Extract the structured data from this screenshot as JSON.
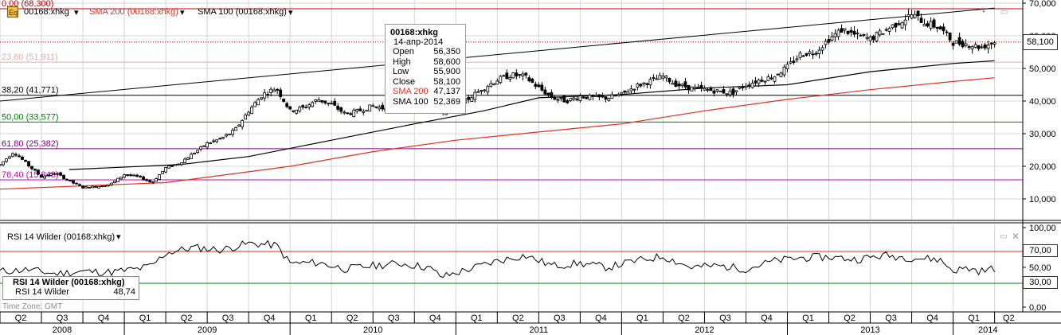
{
  "header": {
    "symbol_label": "00168:xhkg",
    "sma200_label": "SMA 200 (00168:xhkg)",
    "sma100_label": "SMA 100 (00168:xhkg)"
  },
  "colors": {
    "price": "#000000",
    "sma200": "#e0301e",
    "sma100": "#000000",
    "fib_0": "#c00000",
    "fib_23": "#d8b0b0",
    "fib_38": "#000000",
    "fib_50": "#008000",
    "fib_61": "#800080",
    "fib_76": "#cc00cc",
    "rsi": "#000000",
    "rsi_70": "#e0301e",
    "rsi_30": "#008000",
    "grid": "#d4d4d4"
  },
  "tooltip": {
    "title": "00168:xhkg",
    "date": "14-апр-2014",
    "rows": [
      {
        "label": "Open",
        "value": "56,350"
      },
      {
        "label": "High",
        "value": "58,600"
      },
      {
        "label": "Low",
        "value": "55,900"
      },
      {
        "label": "Close",
        "value": "58,100"
      },
      {
        "label": "SMA 200",
        "value": "47,137"
      },
      {
        "label": "SMA 100",
        "value": "52,369"
      }
    ]
  },
  "last_price_label": "58,100",
  "rsi": {
    "header": "RSI 14 Wilder (00168:xhkg)",
    "box_title": "RSI 14 Wilder (00168:xhkg)",
    "box_label": "RSI 14 Wilder",
    "box_value": "48,74",
    "level_70_label": "70,00",
    "level_30_label": "30,00"
  },
  "timezone": "Time Zone: GMT",
  "icons": {
    "settings": "settings-icon",
    "close": "close-icon",
    "maximize": "maximize-icon",
    "dropdown": "dropdown-arrow-icon"
  },
  "chart_data": [
    {
      "type": "candlestick",
      "title": "00168:xhkg",
      "y_ticks": [
        "70,000",
        "60,000",
        "50,000",
        "40,000",
        "30,000",
        "20,000",
        "10,000"
      ],
      "ylim": [
        0,
        70000
      ],
      "x_quarters": [
        "Q2",
        "Q3",
        "Q4",
        "Q1",
        "Q2",
        "Q3",
        "Q4",
        "Q1",
        "Q2",
        "Q3",
        "Q4",
        "Q1",
        "Q2",
        "Q3",
        "Q4",
        "Q1",
        "Q2",
        "Q3",
        "Q4",
        "Q1",
        "Q2",
        "Q3",
        "Q4",
        "Q1",
        "Q2"
      ],
      "x_years": [
        "2008",
        "2009",
        "2010",
        "2011",
        "2012",
        "2013",
        "2014"
      ],
      "fib_levels": [
        {
          "label": "0,00 (68,300)",
          "value": 68300
        },
        {
          "label": "23,60 (51,911)",
          "value": 51911
        },
        {
          "label": "38,20 (41,771)",
          "value": 41771
        },
        {
          "label": "50,00 (33,577)",
          "value": 33577
        },
        {
          "label": "61,80 (25,382)",
          "value": 25382
        },
        {
          "label": "76,40 (15,848)",
          "value": 15848
        }
      ],
      "trendline": {
        "start": [
          "2008-04",
          40000
        ],
        "end": [
          "2014-04",
          68500
        ]
      },
      "price_path": [
        [
          "2008-04",
          20500
        ],
        [
          "2008-05",
          24500
        ],
        [
          "2008-06",
          20500
        ],
        [
          "2008-07",
          16800
        ],
        [
          "2008-08",
          18000
        ],
        [
          "2008-09",
          15500
        ],
        [
          "2008-10",
          13500
        ],
        [
          "2008-11",
          13800
        ],
        [
          "2008-12",
          14500
        ],
        [
          "2009-01",
          17500
        ],
        [
          "2009-02",
          16800
        ],
        [
          "2009-03",
          15000
        ],
        [
          "2009-04",
          19500
        ],
        [
          "2009-05",
          21000
        ],
        [
          "2009-06",
          24000
        ],
        [
          "2009-07",
          27000
        ],
        [
          "2009-08",
          28500
        ],
        [
          "2009-09",
          31000
        ],
        [
          "2009-10",
          37000
        ],
        [
          "2009-11",
          42000
        ],
        [
          "2009-12",
          44000
        ],
        [
          "2010-01",
          37000
        ],
        [
          "2010-02",
          38000
        ],
        [
          "2010-03",
          40500
        ],
        [
          "2010-04",
          39000
        ],
        [
          "2010-05",
          36000
        ],
        [
          "2010-06",
          37000
        ],
        [
          "2010-07",
          38500
        ],
        [
          "2010-08",
          37500
        ],
        [
          "2010-09",
          38000
        ],
        [
          "2010-10",
          39000
        ],
        [
          "2010-11",
          38000
        ],
        [
          "2010-12",
          36500
        ],
        [
          "2011-01",
          38000
        ],
        [
          "2011-02",
          41000
        ],
        [
          "2011-03",
          44000
        ],
        [
          "2011-04",
          46500
        ],
        [
          "2011-05",
          48000
        ],
        [
          "2011-06",
          47500
        ],
        [
          "2011-07",
          44000
        ],
        [
          "2011-08",
          41000
        ],
        [
          "2011-09",
          40000
        ],
        [
          "2011-10",
          41500
        ],
        [
          "2011-11",
          41000
        ],
        [
          "2011-12",
          41000
        ],
        [
          "2012-01",
          42000
        ],
        [
          "2012-02",
          44500
        ],
        [
          "2012-03",
          46000
        ],
        [
          "2012-04",
          47500
        ],
        [
          "2012-05",
          45000
        ],
        [
          "2012-06",
          44000
        ],
        [
          "2012-07",
          43500
        ],
        [
          "2012-08",
          43000
        ],
        [
          "2012-09",
          42500
        ],
        [
          "2012-10",
          45000
        ],
        [
          "2012-11",
          46500
        ],
        [
          "2012-12",
          47500
        ],
        [
          "2013-01",
          50500
        ],
        [
          "2013-02",
          54500
        ],
        [
          "2013-03",
          55000
        ],
        [
          "2013-04",
          59000
        ],
        [
          "2013-05",
          62000
        ],
        [
          "2013-06",
          60000
        ],
        [
          "2013-07",
          59000
        ],
        [
          "2013-08",
          61500
        ],
        [
          "2013-09",
          64000
        ],
        [
          "2013-10",
          66500
        ],
        [
          "2013-11",
          64000
        ],
        [
          "2013-12",
          62500
        ],
        [
          "2014-01",
          58000
        ],
        [
          "2014-02",
          57500
        ],
        [
          "2014-03",
          56500
        ],
        [
          "2014-04",
          58100
        ]
      ],
      "sma200_path": [
        [
          "2008-04",
          13000
        ],
        [
          "2009-04",
          15000
        ],
        [
          "2010-01",
          20000
        ],
        [
          "2010-07",
          24500
        ],
        [
          "2011-01",
          28000
        ],
        [
          "2011-07",
          30500
        ],
        [
          "2012-01",
          33000
        ],
        [
          "2012-07",
          37000
        ],
        [
          "2013-01",
          40500
        ],
        [
          "2013-07",
          43500
        ],
        [
          "2014-01",
          46000
        ],
        [
          "2014-04",
          47137
        ]
      ],
      "sma100_path": [
        [
          "2008-09",
          19000
        ],
        [
          "2009-05",
          20500
        ],
        [
          "2009-10",
          23000
        ],
        [
          "2010-04",
          28000
        ],
        [
          "2010-10",
          33000
        ],
        [
          "2011-03",
          37000
        ],
        [
          "2011-07",
          41000
        ],
        [
          "2012-01",
          42000
        ],
        [
          "2012-07",
          44000
        ],
        [
          "2013-01",
          45000
        ],
        [
          "2013-07",
          49000
        ],
        [
          "2014-01",
          51500
        ],
        [
          "2014-04",
          52369
        ]
      ]
    },
    {
      "type": "line",
      "title": "RSI 14 Wilder (00168:xhkg)",
      "y_ticks": [
        "100,00",
        "50,00",
        "0,00"
      ],
      "ylim": [
        0,
        100
      ],
      "levels": [
        70,
        30
      ],
      "series_path": [
        [
          "2008-04",
          45
        ],
        [
          "2008-06",
          47
        ],
        [
          "2008-08",
          42
        ],
        [
          "2008-10",
          45
        ],
        [
          "2008-12",
          44
        ],
        [
          "2009-02",
          48
        ],
        [
          "2009-03",
          52
        ],
        [
          "2009-04",
          68
        ],
        [
          "2009-06",
          75
        ],
        [
          "2009-08",
          72
        ],
        [
          "2009-10",
          80
        ],
        [
          "2009-12",
          78
        ],
        [
          "2010-01",
          55
        ],
        [
          "2010-03",
          56
        ],
        [
          "2010-05",
          48
        ],
        [
          "2010-07",
          52
        ],
        [
          "2010-09",
          55
        ],
        [
          "2010-11",
          50
        ],
        [
          "2010-12",
          38
        ],
        [
          "2011-02",
          48
        ],
        [
          "2011-04",
          58
        ],
        [
          "2011-06",
          65
        ],
        [
          "2011-08",
          52
        ],
        [
          "2011-10",
          55
        ],
        [
          "2011-12",
          50
        ],
        [
          "2012-02",
          58
        ],
        [
          "2012-04",
          64
        ],
        [
          "2012-06",
          50
        ],
        [
          "2012-08",
          52
        ],
        [
          "2012-10",
          48
        ],
        [
          "2012-12",
          58
        ],
        [
          "2013-02",
          62
        ],
        [
          "2013-04",
          63
        ],
        [
          "2013-06",
          60
        ],
        [
          "2013-08",
          65
        ],
        [
          "2013-10",
          62
        ],
        [
          "2013-12",
          60
        ],
        [
          "2014-01",
          46
        ],
        [
          "2014-02",
          49
        ],
        [
          "2014-03",
          45
        ],
        [
          "2014-04",
          48.74
        ]
      ]
    }
  ]
}
